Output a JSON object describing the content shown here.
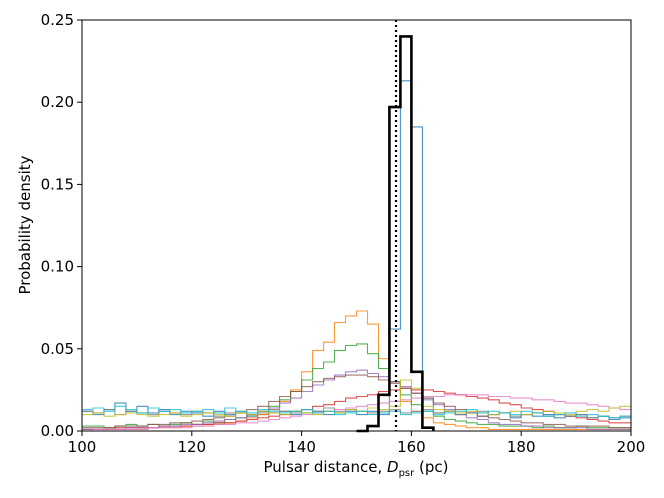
{
  "chart_data": {
    "type": "line",
    "xlabel_main": "Pulsar distance, ",
    "xlabel_symbol": "D",
    "xlabel_subscript": "psr",
    "xlabel_unit": " (pc)",
    "ylabel": "Probability density",
    "xlim": [
      100,
      200
    ],
    "ylim": [
      0,
      0.25
    ],
    "x_ticks": [
      "100",
      "120",
      "140",
      "160",
      "180",
      "200"
    ],
    "y_ticks": [
      "0.00",
      "0.05",
      "0.10",
      "0.15",
      "0.20",
      "0.25"
    ],
    "x_tick_values": [
      100,
      120,
      140,
      160,
      180,
      200
    ],
    "y_tick_values": [
      0,
      0.05,
      0.1,
      0.15,
      0.2,
      0.25
    ],
    "reference_line": {
      "x": 157.2,
      "style": "dotted",
      "color": "#000000"
    },
    "series": [
      {
        "color": "#1f77b4",
        "edges": [
          100,
          102,
          104,
          106,
          108,
          110,
          112,
          114,
          116,
          118,
          120,
          122,
          124,
          126,
          128,
          130,
          132,
          134,
          136,
          138,
          140,
          142,
          144,
          146,
          148,
          150,
          152,
          154,
          156,
          158,
          160,
          162,
          164,
          166,
          168,
          170,
          172,
          174,
          176,
          178,
          180,
          182,
          184,
          186,
          188,
          190,
          192,
          194,
          196,
          198,
          200
        ],
        "values": [
          0.012,
          0.01,
          0.013,
          0.017,
          0.012,
          0.015,
          0.011,
          0.013,
          0.01,
          0.012,
          0.011,
          0.009,
          0.012,
          0.01,
          0.011,
          0.009,
          0.01,
          0.011,
          0.012,
          0.01,
          0.011,
          0.012,
          0.01,
          0.011,
          0.012,
          0.01,
          0.012,
          0.01,
          0.062,
          0.213,
          0.185,
          0.02,
          0.011,
          0.012,
          0.01,
          0.011,
          0.009,
          0.01,
          0.011,
          0.008,
          0.01,
          0.009,
          0.01,
          0.008,
          0.009,
          0.01,
          0.008,
          0.009,
          0.007,
          0.008
        ]
      },
      {
        "color": "#ff7f0e",
        "edges": [
          100,
          102,
          104,
          106,
          108,
          110,
          112,
          114,
          116,
          118,
          120,
          122,
          124,
          126,
          128,
          130,
          132,
          134,
          136,
          138,
          140,
          142,
          144,
          146,
          148,
          150,
          152,
          154,
          156,
          158,
          160,
          162,
          164,
          166,
          168,
          170,
          172,
          174,
          176,
          178,
          180,
          182,
          184,
          186,
          188,
          190,
          192,
          194,
          196,
          198,
          200
        ],
        "values": [
          0.001,
          0.001,
          0.001,
          0.001,
          0.001,
          0.001,
          0.002,
          0.002,
          0.002,
          0.003,
          0.003,
          0.004,
          0.004,
          0.005,
          0.006,
          0.008,
          0.01,
          0.013,
          0.018,
          0.025,
          0.036,
          0.049,
          0.054,
          0.066,
          0.07,
          0.073,
          0.065,
          0.044,
          0.03,
          0.018,
          0.012,
          0.008,
          0.005,
          0.004,
          0.003,
          0.002,
          0.002,
          0.001,
          0.001,
          0.001,
          0.001,
          0.001,
          0.001,
          0.001,
          0.001,
          0.001,
          0.001,
          0.001,
          0.001,
          0.001
        ]
      },
      {
        "color": "#2ca02c",
        "edges": [
          100,
          102,
          104,
          106,
          108,
          110,
          112,
          114,
          116,
          118,
          120,
          122,
          124,
          126,
          128,
          130,
          132,
          134,
          136,
          138,
          140,
          142,
          144,
          146,
          148,
          150,
          152,
          154,
          156,
          158,
          160,
          162,
          164,
          166,
          168,
          170,
          172,
          174,
          176,
          178,
          180,
          182,
          184,
          186,
          188,
          190,
          192,
          194,
          196,
          198,
          200
        ],
        "values": [
          0.003,
          0.003,
          0.002,
          0.003,
          0.004,
          0.003,
          0.004,
          0.003,
          0.004,
          0.005,
          0.004,
          0.006,
          0.005,
          0.007,
          0.008,
          0.01,
          0.012,
          0.015,
          0.019,
          0.024,
          0.031,
          0.038,
          0.042,
          0.049,
          0.052,
          0.053,
          0.047,
          0.038,
          0.03,
          0.022,
          0.016,
          0.012,
          0.009,
          0.007,
          0.006,
          0.005,
          0.004,
          0.004,
          0.003,
          0.003,
          0.003,
          0.002,
          0.003,
          0.002,
          0.002,
          0.003,
          0.002,
          0.002,
          0.002,
          0.002
        ]
      },
      {
        "color": "#d62728",
        "edges": [
          100,
          102,
          104,
          106,
          108,
          110,
          112,
          114,
          116,
          118,
          120,
          122,
          124,
          126,
          128,
          130,
          132,
          134,
          136,
          138,
          140,
          142,
          144,
          146,
          148,
          150,
          152,
          154,
          156,
          158,
          160,
          162,
          164,
          166,
          168,
          170,
          172,
          174,
          176,
          178,
          180,
          182,
          184,
          186,
          188,
          190,
          192,
          194,
          196,
          198,
          200
        ],
        "values": [
          0.001,
          0.001,
          0.001,
          0.002,
          0.002,
          0.002,
          0.002,
          0.003,
          0.003,
          0.003,
          0.004,
          0.004,
          0.005,
          0.005,
          0.006,
          0.007,
          0.008,
          0.009,
          0.01,
          0.012,
          0.013,
          0.015,
          0.016,
          0.018,
          0.02,
          0.021,
          0.022,
          0.024,
          0.025,
          0.026,
          0.025,
          0.025,
          0.024,
          0.023,
          0.022,
          0.021,
          0.02,
          0.019,
          0.017,
          0.016,
          0.014,
          0.013,
          0.012,
          0.01,
          0.009,
          0.008,
          0.007,
          0.006,
          0.005,
          0.005
        ]
      },
      {
        "color": "#9467bd",
        "edges": [
          100,
          102,
          104,
          106,
          108,
          110,
          112,
          114,
          116,
          118,
          120,
          122,
          124,
          126,
          128,
          130,
          132,
          134,
          136,
          138,
          140,
          142,
          144,
          146,
          148,
          150,
          152,
          154,
          156,
          158,
          160,
          162,
          164,
          166,
          168,
          170,
          172,
          174,
          176,
          178,
          180,
          182,
          184,
          186,
          188,
          190,
          192,
          194,
          196,
          198,
          200
        ],
        "values": [
          0.001,
          0.001,
          0.001,
          0.001,
          0.002,
          0.002,
          0.002,
          0.003,
          0.003,
          0.004,
          0.004,
          0.005,
          0.006,
          0.007,
          0.008,
          0.01,
          0.012,
          0.014,
          0.017,
          0.02,
          0.024,
          0.028,
          0.031,
          0.034,
          0.036,
          0.037,
          0.035,
          0.033,
          0.03,
          0.027,
          0.023,
          0.019,
          0.016,
          0.013,
          0.01,
          0.008,
          0.007,
          0.005,
          0.004,
          0.004,
          0.003,
          0.003,
          0.002,
          0.002,
          0.002,
          0.002,
          0.001,
          0.001,
          0.001,
          0.001
        ]
      },
      {
        "color": "#8c564b",
        "edges": [
          100,
          102,
          104,
          106,
          108,
          110,
          112,
          114,
          116,
          118,
          120,
          122,
          124,
          126,
          128,
          130,
          132,
          134,
          136,
          138,
          140,
          142,
          144,
          146,
          148,
          150,
          152,
          154,
          156,
          158,
          160,
          162,
          164,
          166,
          168,
          170,
          172,
          174,
          176,
          178,
          180,
          182,
          184,
          186,
          188,
          190,
          192,
          194,
          196,
          198,
          200
        ],
        "values": [
          0.002,
          0.002,
          0.002,
          0.003,
          0.003,
          0.003,
          0.004,
          0.004,
          0.005,
          0.005,
          0.006,
          0.007,
          0.008,
          0.009,
          0.011,
          0.013,
          0.015,
          0.018,
          0.021,
          0.024,
          0.027,
          0.03,
          0.032,
          0.033,
          0.034,
          0.034,
          0.033,
          0.031,
          0.029,
          0.026,
          0.023,
          0.02,
          0.017,
          0.015,
          0.013,
          0.011,
          0.009,
          0.008,
          0.007,
          0.006,
          0.005,
          0.005,
          0.004,
          0.004,
          0.003,
          0.003,
          0.003,
          0.003,
          0.002,
          0.002
        ]
      },
      {
        "color": "#e377c2",
        "edges": [
          100,
          102,
          104,
          106,
          108,
          110,
          112,
          114,
          116,
          118,
          120,
          122,
          124,
          126,
          128,
          130,
          132,
          134,
          136,
          138,
          140,
          142,
          144,
          146,
          148,
          150,
          152,
          154,
          156,
          158,
          160,
          162,
          164,
          166,
          168,
          170,
          172,
          174,
          176,
          178,
          180,
          182,
          184,
          186,
          188,
          190,
          192,
          194,
          196,
          198,
          200
        ],
        "values": [
          0.0,
          0.001,
          0.001,
          0.001,
          0.001,
          0.001,
          0.002,
          0.002,
          0.002,
          0.002,
          0.003,
          0.003,
          0.004,
          0.004,
          0.005,
          0.005,
          0.006,
          0.007,
          0.008,
          0.009,
          0.01,
          0.011,
          0.012,
          0.013,
          0.014,
          0.015,
          0.016,
          0.017,
          0.018,
          0.019,
          0.02,
          0.021,
          0.021,
          0.022,
          0.022,
          0.022,
          0.022,
          0.021,
          0.021,
          0.02,
          0.02,
          0.019,
          0.019,
          0.018,
          0.017,
          0.017,
          0.016,
          0.015,
          0.014,
          0.013
        ]
      },
      {
        "color": "#7f7f7f",
        "edges": [
          100,
          102,
          104,
          106,
          108,
          110,
          112,
          114,
          116,
          118,
          120,
          122,
          124,
          126,
          128,
          130,
          132,
          134,
          136,
          138,
          140,
          142,
          144,
          146,
          148,
          150,
          152,
          154,
          156,
          158,
          160,
          162,
          164,
          166,
          168,
          170,
          172,
          174,
          176,
          178,
          180,
          182,
          184,
          186,
          188,
          190,
          192,
          194,
          196,
          198,
          200
        ],
        "values": [
          0.012,
          0.011,
          0.013,
          0.01,
          0.012,
          0.011,
          0.01,
          0.012,
          0.011,
          0.01,
          0.012,
          0.011,
          0.009,
          0.011,
          0.012,
          0.01,
          0.011,
          0.013,
          0.012,
          0.011,
          0.013,
          0.012,
          0.014,
          0.012,
          0.013,
          0.012,
          0.011,
          0.012,
          0.013,
          0.011,
          0.012,
          0.013,
          0.011,
          0.012,
          0.01,
          0.011,
          0.012,
          0.01,
          0.011,
          0.009,
          0.01,
          0.011,
          0.009,
          0.01,
          0.009,
          0.01,
          0.008,
          0.009,
          0.008,
          0.009
        ]
      },
      {
        "color": "#bcbd22",
        "edges": [
          100,
          102,
          104,
          106,
          108,
          110,
          112,
          114,
          116,
          118,
          120,
          122,
          124,
          126,
          128,
          130,
          132,
          134,
          136,
          138,
          140,
          142,
          144,
          146,
          148,
          150,
          152,
          154,
          156,
          158,
          160,
          162,
          164,
          166,
          168,
          170,
          172,
          174,
          176,
          178,
          180,
          182,
          184,
          186,
          188,
          190,
          192,
          194,
          196,
          198,
          200
        ],
        "values": [
          0.01,
          0.011,
          0.009,
          0.01,
          0.011,
          0.01,
          0.009,
          0.01,
          0.011,
          0.009,
          0.01,
          0.011,
          0.01,
          0.009,
          0.011,
          0.01,
          0.012,
          0.011,
          0.01,
          0.012,
          0.011,
          0.01,
          0.012,
          0.011,
          0.013,
          0.012,
          0.014,
          0.013,
          0.015,
          0.031,
          0.026,
          0.015,
          0.013,
          0.012,
          0.011,
          0.012,
          0.011,
          0.01,
          0.011,
          0.012,
          0.01,
          0.011,
          0.012,
          0.011,
          0.01,
          0.012,
          0.013,
          0.012,
          0.014,
          0.015
        ]
      },
      {
        "color": "#17becf",
        "edges": [
          100,
          102,
          104,
          106,
          108,
          110,
          112,
          114,
          116,
          118,
          120,
          122,
          124,
          126,
          128,
          130,
          132,
          134,
          136,
          138,
          140,
          142,
          144,
          146,
          148,
          150,
          152,
          154,
          156,
          158,
          160,
          162,
          164,
          166,
          168,
          170,
          172,
          174,
          176,
          178,
          180,
          182,
          184,
          186,
          188,
          190,
          192,
          194,
          196,
          198,
          200
        ],
        "values": [
          0.013,
          0.014,
          0.012,
          0.015,
          0.013,
          0.011,
          0.014,
          0.012,
          0.013,
          0.011,
          0.012,
          0.013,
          0.011,
          0.014,
          0.012,
          0.011,
          0.013,
          0.012,
          0.011,
          0.012,
          0.013,
          0.011,
          0.012,
          0.01,
          0.011,
          0.012,
          0.01,
          0.011,
          0.012,
          0.01,
          0.011,
          0.012,
          0.01,
          0.011,
          0.012,
          0.013,
          0.011,
          0.012,
          0.011,
          0.01,
          0.012,
          0.011,
          0.009,
          0.01,
          0.011,
          0.009,
          0.01,
          0.009,
          0.008,
          0.009
        ]
      },
      {
        "color": "#000000",
        "thick": true,
        "edges": [
          150,
          152,
          154,
          156,
          158,
          160,
          162,
          164
        ],
        "values": [
          0.0,
          0.003,
          0.022,
          0.197,
          0.24,
          0.036,
          0.002,
          0.0
        ]
      }
    ]
  }
}
